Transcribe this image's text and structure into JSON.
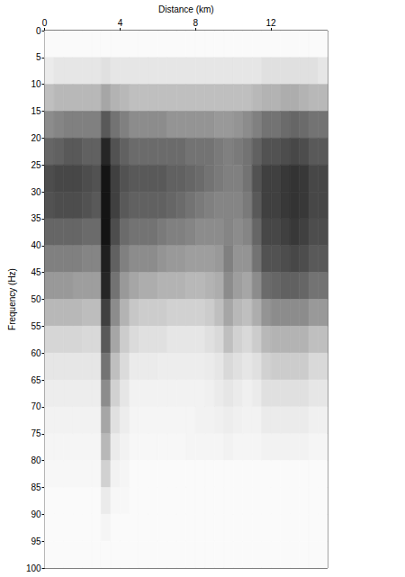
{
  "chart_data": {
    "type": "heatmap",
    "x_label": "Distance (km)",
    "y_label": "Frequency (Hz)",
    "xlim": [
      0,
      15
    ],
    "xticks": [
      0,
      4,
      8,
      12
    ],
    "ylim": [
      0,
      100
    ],
    "yticks": [
      0,
      5,
      10,
      15,
      20,
      25,
      30,
      35,
      40,
      45,
      50,
      55,
      60,
      65,
      70,
      75,
      80,
      85,
      90,
      95,
      100
    ],
    "grid": false,
    "color": "#000000",
    "color_range": [
      0,
      1
    ],
    "x_bins": [
      0,
      0.5,
      1,
      1.5,
      2,
      2.5,
      3,
      3.5,
      4,
      4.5,
      5,
      5.5,
      6,
      6.5,
      7,
      7.5,
      8,
      8.5,
      9,
      9.5,
      10,
      10.5,
      11,
      11.5,
      12,
      12.5,
      13,
      13.5,
      14,
      14.5,
      15
    ],
    "y_bins": [
      0,
      5,
      10,
      15,
      20,
      25,
      30,
      35,
      40,
      45,
      50,
      55,
      60,
      65,
      70,
      75,
      80,
      85,
      90,
      95,
      100
    ],
    "values": [
      [
        0.02,
        0.02,
        0.02,
        0.02,
        0.02,
        0.02,
        0.02,
        0.02,
        0.02,
        0.02,
        0.02,
        0.02,
        0.02,
        0.02,
        0.02,
        0.02,
        0.02,
        0.02,
        0.02,
        0.02,
        0.02,
        0.02,
        0.02,
        0.02,
        0.02,
        0.02,
        0.02,
        0.02,
        0.02,
        0.02
      ],
      [
        0.08,
        0.1,
        0.1,
        0.1,
        0.1,
        0.1,
        0.12,
        0.1,
        0.1,
        0.1,
        0.1,
        0.1,
        0.1,
        0.1,
        0.1,
        0.1,
        0.1,
        0.1,
        0.1,
        0.1,
        0.1,
        0.1,
        0.1,
        0.12,
        0.12,
        0.12,
        0.12,
        0.12,
        0.12,
        0.1
      ],
      [
        0.25,
        0.28,
        0.28,
        0.28,
        0.28,
        0.28,
        0.35,
        0.3,
        0.28,
        0.25,
        0.25,
        0.25,
        0.25,
        0.25,
        0.25,
        0.25,
        0.25,
        0.25,
        0.25,
        0.25,
        0.25,
        0.25,
        0.28,
        0.3,
        0.3,
        0.32,
        0.32,
        0.3,
        0.28,
        0.28
      ],
      [
        0.45,
        0.48,
        0.5,
        0.5,
        0.5,
        0.5,
        0.65,
        0.55,
        0.5,
        0.45,
        0.45,
        0.45,
        0.45,
        0.42,
        0.42,
        0.42,
        0.42,
        0.42,
        0.4,
        0.4,
        0.42,
        0.45,
        0.5,
        0.55,
        0.55,
        0.58,
        0.6,
        0.58,
        0.55,
        0.55
      ],
      [
        0.6,
        0.62,
        0.65,
        0.65,
        0.62,
        0.62,
        0.85,
        0.68,
        0.62,
        0.58,
        0.58,
        0.58,
        0.58,
        0.58,
        0.58,
        0.55,
        0.55,
        0.55,
        0.52,
        0.5,
        0.52,
        0.55,
        0.62,
        0.68,
        0.68,
        0.7,
        0.72,
        0.7,
        0.65,
        0.65
      ],
      [
        0.7,
        0.72,
        0.72,
        0.72,
        0.7,
        0.68,
        0.92,
        0.75,
        0.68,
        0.65,
        0.65,
        0.65,
        0.65,
        0.62,
        0.62,
        0.6,
        0.58,
        0.55,
        0.52,
        0.5,
        0.5,
        0.55,
        0.68,
        0.75,
        0.75,
        0.78,
        0.8,
        0.78,
        0.72,
        0.72
      ],
      [
        0.68,
        0.7,
        0.7,
        0.7,
        0.68,
        0.65,
        0.92,
        0.75,
        0.65,
        0.62,
        0.62,
        0.62,
        0.62,
        0.6,
        0.58,
        0.55,
        0.52,
        0.5,
        0.48,
        0.48,
        0.48,
        0.52,
        0.65,
        0.75,
        0.75,
        0.78,
        0.8,
        0.78,
        0.72,
        0.72
      ],
      [
        0.6,
        0.6,
        0.6,
        0.6,
        0.58,
        0.58,
        0.92,
        0.7,
        0.58,
        0.55,
        0.55,
        0.55,
        0.52,
        0.5,
        0.5,
        0.48,
        0.45,
        0.45,
        0.45,
        0.48,
        0.45,
        0.48,
        0.6,
        0.72,
        0.72,
        0.75,
        0.78,
        0.75,
        0.7,
        0.7
      ],
      [
        0.5,
        0.5,
        0.5,
        0.5,
        0.48,
        0.48,
        0.88,
        0.62,
        0.5,
        0.45,
        0.45,
        0.45,
        0.42,
        0.4,
        0.4,
        0.38,
        0.38,
        0.38,
        0.4,
        0.5,
        0.42,
        0.42,
        0.55,
        0.68,
        0.68,
        0.7,
        0.72,
        0.7,
        0.65,
        0.65
      ],
      [
        0.4,
        0.4,
        0.4,
        0.38,
        0.38,
        0.38,
        0.85,
        0.55,
        0.4,
        0.35,
        0.32,
        0.32,
        0.3,
        0.3,
        0.3,
        0.28,
        0.28,
        0.3,
        0.32,
        0.45,
        0.38,
        0.35,
        0.45,
        0.58,
        0.6,
        0.62,
        0.62,
        0.6,
        0.55,
        0.55
      ],
      [
        0.28,
        0.28,
        0.28,
        0.28,
        0.26,
        0.26,
        0.75,
        0.45,
        0.3,
        0.22,
        0.2,
        0.2,
        0.2,
        0.18,
        0.18,
        0.18,
        0.18,
        0.2,
        0.25,
        0.35,
        0.28,
        0.25,
        0.32,
        0.42,
        0.45,
        0.45,
        0.45,
        0.45,
        0.4,
        0.4
      ],
      [
        0.16,
        0.16,
        0.16,
        0.16,
        0.15,
        0.15,
        0.65,
        0.35,
        0.2,
        0.14,
        0.12,
        0.12,
        0.12,
        0.1,
        0.1,
        0.1,
        0.1,
        0.12,
        0.15,
        0.25,
        0.18,
        0.15,
        0.2,
        0.28,
        0.3,
        0.3,
        0.3,
        0.3,
        0.25,
        0.25
      ],
      [
        0.1,
        0.1,
        0.1,
        0.1,
        0.1,
        0.1,
        0.55,
        0.25,
        0.14,
        0.08,
        0.08,
        0.08,
        0.07,
        0.07,
        0.07,
        0.07,
        0.07,
        0.08,
        0.1,
        0.15,
        0.12,
        0.1,
        0.12,
        0.18,
        0.2,
        0.2,
        0.2,
        0.2,
        0.15,
        0.15
      ],
      [
        0.07,
        0.07,
        0.07,
        0.07,
        0.07,
        0.07,
        0.45,
        0.18,
        0.1,
        0.05,
        0.05,
        0.05,
        0.05,
        0.05,
        0.05,
        0.05,
        0.05,
        0.06,
        0.08,
        0.1,
        0.08,
        0.06,
        0.08,
        0.12,
        0.12,
        0.12,
        0.12,
        0.12,
        0.1,
        0.1
      ],
      [
        0.05,
        0.05,
        0.05,
        0.05,
        0.05,
        0.05,
        0.35,
        0.12,
        0.07,
        0.04,
        0.04,
        0.04,
        0.04,
        0.04,
        0.04,
        0.04,
        0.05,
        0.05,
        0.06,
        0.07,
        0.06,
        0.05,
        0.05,
        0.08,
        0.08,
        0.08,
        0.08,
        0.08,
        0.06,
        0.06
      ],
      [
        0.04,
        0.04,
        0.04,
        0.04,
        0.04,
        0.04,
        0.28,
        0.08,
        0.05,
        0.03,
        0.03,
        0.03,
        0.03,
        0.03,
        0.03,
        0.04,
        0.04,
        0.04,
        0.04,
        0.05,
        0.04,
        0.04,
        0.04,
        0.05,
        0.05,
        0.05,
        0.05,
        0.05,
        0.04,
        0.04
      ],
      [
        0.03,
        0.03,
        0.03,
        0.03,
        0.03,
        0.03,
        0.18,
        0.05,
        0.04,
        0.02,
        0.02,
        0.02,
        0.02,
        0.02,
        0.02,
        0.02,
        0.02,
        0.02,
        0.02,
        0.02,
        0.02,
        0.02,
        0.02,
        0.02,
        0.02,
        0.02,
        0.02,
        0.02,
        0.02,
        0.02
      ],
      [
        0.02,
        0.02,
        0.02,
        0.02,
        0.02,
        0.02,
        0.08,
        0.03,
        0.03,
        0.02,
        0.02,
        0.02,
        0.02,
        0.02,
        0.02,
        0.02,
        0.02,
        0.02,
        0.02,
        0.02,
        0.02,
        0.02,
        0.02,
        0.02,
        0.02,
        0.02,
        0.02,
        0.02,
        0.02,
        0.02
      ],
      [
        0.02,
        0.02,
        0.02,
        0.02,
        0.02,
        0.02,
        0.04,
        0.02,
        0.02,
        0.02,
        0.02,
        0.02,
        0.02,
        0.02,
        0.02,
        0.02,
        0.02,
        0.02,
        0.02,
        0.02,
        0.02,
        0.02,
        0.02,
        0.02,
        0.02,
        0.02,
        0.02,
        0.02,
        0.02,
        0.02
      ],
      [
        0.02,
        0.02,
        0.02,
        0.02,
        0.02,
        0.02,
        0.02,
        0.02,
        0.02,
        0.02,
        0.02,
        0.02,
        0.02,
        0.02,
        0.02,
        0.02,
        0.02,
        0.02,
        0.02,
        0.02,
        0.02,
        0.02,
        0.02,
        0.02,
        0.02,
        0.02,
        0.02,
        0.02,
        0.02,
        0.02
      ]
    ]
  }
}
